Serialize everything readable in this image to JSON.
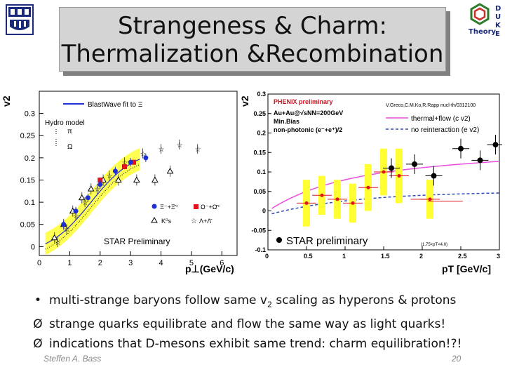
{
  "title": {
    "line1": "Strangeness & Charm:",
    "line2": "Thermalization &Recombination"
  },
  "logo_right": {
    "text": "Theory",
    "letters": [
      "D",
      "U",
      "K",
      "E"
    ]
  },
  "left_chart": {
    "ylabel": "v2",
    "xlabel": "p⊥(GeV/c)",
    "xlim": [
      0,
      6.5
    ],
    "ylim": [
      -0.02,
      0.35
    ],
    "xticks": [
      "0",
      "1",
      "2",
      "3",
      "4",
      "5",
      "6"
    ],
    "yticks": [
      "0",
      "0.05",
      "0.1",
      "0.15",
      "0.2",
      "0.25",
      "0.3"
    ],
    "legend": {
      "blastwave": "BlastWave fit to Ξ",
      "hydro_title": "Hydro model",
      "hydro_pi": "π",
      "hydro_omega": "Ω",
      "xi_label": "Ξ⁻+Ξ̄⁺",
      "omega_label": "Ω⁻+Ω̄⁺",
      "k0s_label": "K⁰s",
      "lambda_label": "Λ+Λ̄",
      "preliminary": "STAR Preliminary"
    },
    "series": {
      "xi": [
        [
          0.8,
          0.05
        ],
        [
          1.2,
          0.08
        ],
        [
          1.6,
          0.11
        ],
        [
          2.0,
          0.14
        ],
        [
          2.5,
          0.17
        ],
        [
          3.0,
          0.19
        ],
        [
          3.5,
          0.2
        ]
      ],
      "omega": [
        [
          2.0,
          0.15
        ],
        [
          2.8,
          0.18
        ],
        [
          3.1,
          0.19
        ]
      ],
      "k0s": [
        [
          0.5,
          0.02
        ],
        [
          0.8,
          0.05
        ],
        [
          1.1,
          0.08
        ],
        [
          1.4,
          0.11
        ],
        [
          1.7,
          0.13
        ],
        [
          2.1,
          0.15
        ],
        [
          2.6,
          0.15
        ],
        [
          3.2,
          0.15
        ],
        [
          3.8,
          0.15
        ],
        [
          4.3,
          0.17
        ]
      ],
      "lambda": [
        [
          0.6,
          0.01
        ],
        [
          0.9,
          0.04
        ],
        [
          1.2,
          0.07
        ],
        [
          1.5,
          0.1
        ],
        [
          1.9,
          0.13
        ],
        [
          2.3,
          0.16
        ],
        [
          2.8,
          0.19
        ],
        [
          3.4,
          0.21
        ],
        [
          4.0,
          0.22
        ],
        [
          4.6,
          0.23
        ],
        [
          5.2,
          0.22
        ]
      ]
    }
  },
  "right_chart": {
    "ylabel": "v2",
    "xlabel": "pT [GeV/c]",
    "xlim": [
      0,
      3
    ],
    "ylim": [
      -0.1,
      0.3
    ],
    "xticks": [
      "0",
      "0.5",
      "1",
      "1.5",
      "2",
      "2.5",
      "3"
    ],
    "yticks": [
      "-0.1",
      "-0.05",
      "0",
      "0.05",
      "0.1",
      "0.15",
      "0.2",
      "0.25",
      "0.3"
    ],
    "legend": {
      "phenix": "PHENIX preliminary",
      "system": "Au+Au@√sNN=200GeV",
      "minbias": "Min.Bias",
      "nonphot": "non-photonic (e⁻+e⁺)/2",
      "ref": "V.Greco,C.M.Ko,R.Rapp nucl-th/0312100",
      "thermal": "thermal+flow (c v2)",
      "noreint": "no reinteraction (e v2)",
      "star": "STAR preliminary",
      "range": "(1.75<pT<4.0)"
    },
    "phenix_points": [
      [
        0.5,
        0.02,
        0.06
      ],
      [
        0.7,
        0.04,
        0.05
      ],
      [
        0.9,
        0.03,
        0.05
      ],
      [
        1.1,
        0.02,
        0.05
      ],
      [
        1.3,
        0.06,
        0.06
      ],
      [
        1.5,
        0.1,
        0.06
      ],
      [
        1.7,
        0.09,
        0.07
      ],
      [
        2.1,
        0.03,
        0.05
      ]
    ],
    "star_points": [
      [
        1.6,
        0.11
      ],
      [
        1.9,
        0.12
      ],
      [
        2.15,
        0.09
      ],
      [
        2.5,
        0.16
      ],
      [
        2.75,
        0.13
      ],
      [
        2.95,
        0.17
      ]
    ],
    "star_hbar": [
      [
        2.0,
        0.03,
        0.3
      ],
      [
        2.3,
        0.025,
        0.45
      ]
    ]
  },
  "bullets": [
    {
      "mark": "•",
      "pre": "multi-strange baryons follow same v",
      "sub": "2",
      "post": " scaling as hyperons & protons"
    },
    {
      "mark": "Ø",
      "pre": "strange quarks equilibrate and flow the same way as light quarks!",
      "sub": "",
      "post": ""
    },
    {
      "mark": "Ø",
      "pre": "indications that D-mesons exhibit same trend: charm equilibration!?!",
      "sub": "",
      "post": ""
    }
  ],
  "footer": {
    "author": "Steffen A. Bass",
    "page": "20"
  },
  "colors": {
    "band": "#ffff33",
    "xi": "#1f2fd6",
    "omega": "#e0141e",
    "pink": "#e84fe0",
    "dash": "#2e4bb8"
  }
}
